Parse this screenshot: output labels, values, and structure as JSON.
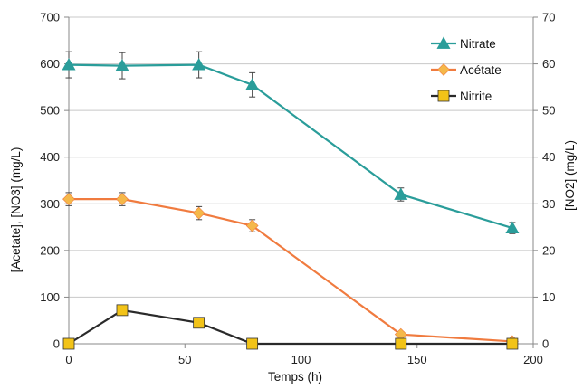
{
  "chart_data": {
    "type": "line",
    "xlabel": "Temps (h)",
    "ylabel_left": "[Acetate], [NO3] (mg/L)",
    "ylabel_right": "[NO2] (mg/L)",
    "x_ticks": [
      "0",
      "50",
      "100",
      "150",
      "200"
    ],
    "y_left_ticks": [
      "0",
      "100",
      "200",
      "300",
      "400",
      "500",
      "600",
      "700"
    ],
    "y_right_ticks": [
      "0",
      "10",
      "20",
      "30",
      "40",
      "50",
      "60",
      "70"
    ],
    "xlim": [
      0,
      200
    ],
    "ylim_left": [
      0,
      700
    ],
    "ylim_right": [
      0,
      70
    ],
    "grid": "horizontal",
    "legend_position": "top-right",
    "series": [
      {
        "name": "Nitrate",
        "axis": "left",
        "marker": "triangle",
        "color": "#2a9d9a",
        "x": [
          0,
          23,
          56,
          79,
          143,
          191
        ],
        "values": [
          598,
          596,
          598,
          555,
          320,
          248
        ],
        "errors": [
          28,
          28,
          28,
          26,
          14,
          12
        ]
      },
      {
        "name": "Acétate",
        "axis": "left",
        "marker": "diamond",
        "color": "#f07b3f",
        "marker_color": "#f5b84a",
        "x": [
          0,
          23,
          56,
          79,
          143,
          191
        ],
        "values": [
          310,
          310,
          280,
          253,
          20,
          5
        ],
        "errors": [
          14,
          14,
          14,
          13,
          6,
          4
        ]
      },
      {
        "name": "Nitrite",
        "axis": "right",
        "marker": "square",
        "color": "#2a2a2a",
        "marker_color": "#f2c318",
        "x": [
          0,
          23,
          56,
          79,
          143,
          191
        ],
        "values": [
          0,
          7.2,
          4.5,
          0,
          0,
          0
        ],
        "errors": [
          0,
          0,
          0,
          0,
          0,
          0
        ]
      }
    ]
  }
}
